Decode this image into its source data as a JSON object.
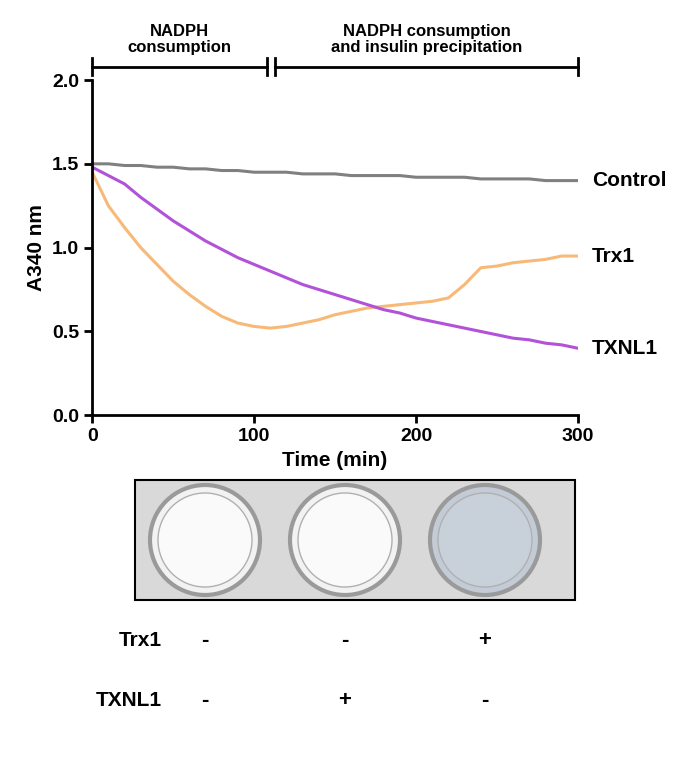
{
  "chart_data": {
    "type": "line",
    "x_label": "Time (min)",
    "y_label": "A340 nm",
    "x": [
      0,
      10,
      20,
      30,
      40,
      50,
      60,
      70,
      80,
      90,
      100,
      110,
      120,
      130,
      140,
      150,
      160,
      170,
      180,
      190,
      200,
      210,
      220,
      230,
      240,
      250,
      260,
      270,
      280,
      290,
      300
    ],
    "series": [
      {
        "name": "Control",
        "color": "#808080",
        "values": [
          1.5,
          1.5,
          1.49,
          1.49,
          1.48,
          1.48,
          1.47,
          1.47,
          1.46,
          1.46,
          1.45,
          1.45,
          1.45,
          1.44,
          1.44,
          1.44,
          1.43,
          1.43,
          1.43,
          1.43,
          1.42,
          1.42,
          1.42,
          1.42,
          1.41,
          1.41,
          1.41,
          1.41,
          1.4,
          1.4,
          1.4
        ]
      },
      {
        "name": "Trx1",
        "color": "#F7B978",
        "values": [
          1.45,
          1.25,
          1.12,
          1.0,
          0.9,
          0.8,
          0.72,
          0.65,
          0.59,
          0.55,
          0.53,
          0.52,
          0.53,
          0.55,
          0.57,
          0.6,
          0.62,
          0.64,
          0.65,
          0.66,
          0.67,
          0.68,
          0.7,
          0.78,
          0.88,
          0.89,
          0.91,
          0.92,
          0.93,
          0.95,
          0.95
        ]
      },
      {
        "name": "TXNL1",
        "color": "#B152D9",
        "values": [
          1.48,
          1.43,
          1.38,
          1.3,
          1.23,
          1.16,
          1.1,
          1.04,
          0.99,
          0.94,
          0.9,
          0.86,
          0.82,
          0.78,
          0.75,
          0.72,
          0.69,
          0.66,
          0.63,
          0.61,
          0.58,
          0.56,
          0.54,
          0.52,
          0.5,
          0.48,
          0.46,
          0.45,
          0.43,
          0.42,
          0.4
        ]
      }
    ],
    "xlim": [
      0,
      300
    ],
    "xticks": [
      0,
      100,
      200,
      300
    ],
    "ylim": [
      0,
      2
    ],
    "yticks": [
      {
        "value": 0,
        "label": "0.0"
      },
      0.5,
      {
        "value": 1,
        "label": "1.0"
      },
      1.5,
      {
        "value": 2,
        "label": "2.0"
      }
    ],
    "grid": false,
    "phases": [
      {
        "label": "NADPH\nconsumption",
        "start": 0,
        "end": 108
      },
      {
        "label": "NADPH consumption\nand insulin precipitation",
        "start": 113,
        "end": 300
      }
    ],
    "wells": {
      "rows": [
        {
          "label": "Trx1",
          "marks": [
            "-",
            "-",
            "+"
          ]
        },
        {
          "label": "TXNL1",
          "marks": [
            "-",
            "+",
            "-"
          ]
        }
      ],
      "turbid": [
        false,
        false,
        true
      ]
    }
  }
}
